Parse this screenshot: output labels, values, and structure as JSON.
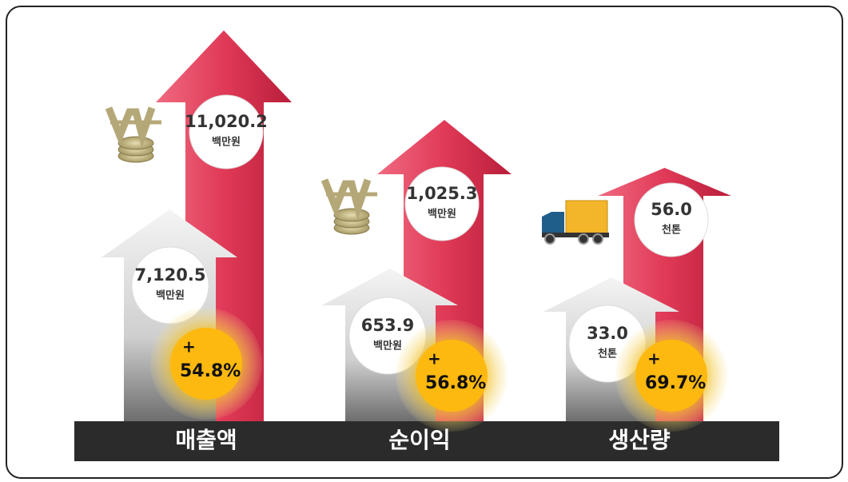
{
  "groups": [
    {
      "label": "매출액",
      "before": {
        "value": "7,120.5",
        "unit": "백만원"
      },
      "after": {
        "value": "11,020.2",
        "unit": "백만원"
      },
      "growth_sign": "+",
      "growth": "54.8%"
    },
    {
      "label": "순이익",
      "before": {
        "value": "653.9",
        "unit": "백만원"
      },
      "after": {
        "value": "1,025.3",
        "unit": "백만원"
      },
      "growth_sign": "+",
      "growth": "56.8%"
    },
    {
      "label": "생산량",
      "before": {
        "value": "33.0",
        "unit": "천톤"
      },
      "after": {
        "value": "56.0",
        "unit": "천톤"
      },
      "growth_sign": "+",
      "growth": "69.7%"
    }
  ]
}
